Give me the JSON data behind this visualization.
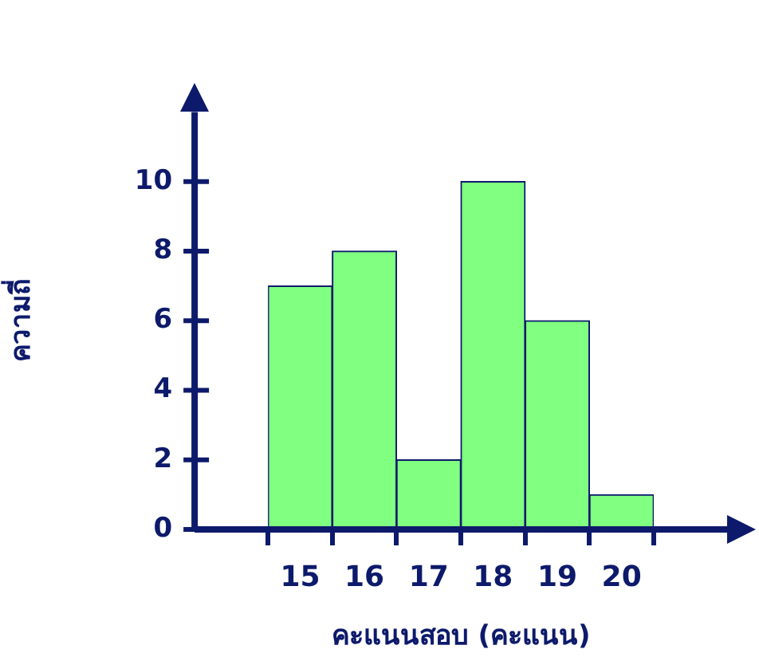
{
  "chart_data": {
    "type": "bar",
    "xlabel": "คะแนนสอบ (คะแนน)",
    "ylabel": "ความถี่",
    "categories": [
      "15",
      "16",
      "17",
      "18",
      "19",
      "20"
    ],
    "values": [
      7,
      8,
      2,
      10,
      6,
      1
    ],
    "color": "#80ff80",
    "ylim": [
      0,
      12
    ],
    "yticks": [
      0,
      2,
      4,
      6,
      8,
      10
    ]
  }
}
